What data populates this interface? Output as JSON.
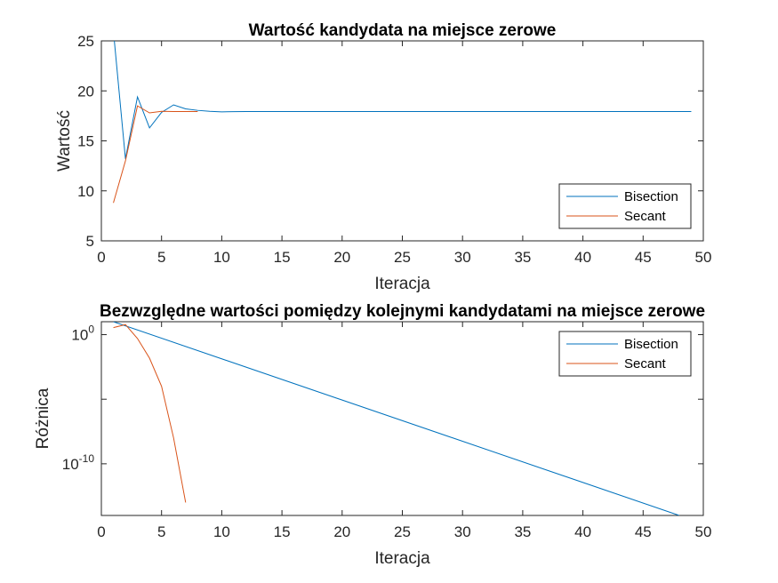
{
  "chart_data": [
    {
      "type": "line",
      "title": "Wartość kandydata na miejsce zerowe",
      "xlabel": "Iteracja",
      "ylabel": "Wartość",
      "xlim": [
        0,
        50
      ],
      "ylim": [
        5,
        25
      ],
      "yscale": "linear",
      "xticks": [
        0,
        5,
        10,
        15,
        20,
        25,
        30,
        35,
        40,
        45,
        50
      ],
      "yticks": [
        5,
        10,
        15,
        20,
        25
      ],
      "grid": false,
      "legend_position": "bottom-right",
      "series": [
        {
          "name": "Bisection",
          "color": "#0072BD",
          "x": [
            1,
            2,
            3,
            4,
            5,
            6,
            7,
            8,
            9,
            10,
            11,
            12,
            13,
            14,
            15,
            16,
            17,
            18,
            19,
            20,
            21,
            22,
            23,
            24,
            25,
            26,
            27,
            28,
            29,
            30,
            31,
            32,
            33,
            34,
            35,
            36,
            37,
            38,
            39,
            40,
            41,
            42,
            43,
            44,
            45,
            46,
            47,
            48,
            49
          ],
          "y": [
            26.0,
            13.2,
            19.4,
            16.3,
            17.85,
            18.6,
            18.2,
            18.05,
            17.95,
            17.9,
            17.92,
            17.93,
            17.93,
            17.93,
            17.93,
            17.93,
            17.93,
            17.93,
            17.93,
            17.93,
            17.93,
            17.93,
            17.93,
            17.93,
            17.93,
            17.93,
            17.93,
            17.93,
            17.93,
            17.93,
            17.93,
            17.93,
            17.93,
            17.93,
            17.93,
            17.93,
            17.93,
            17.93,
            17.93,
            17.93,
            17.93,
            17.93,
            17.93,
            17.93,
            17.93,
            17.93,
            17.93,
            17.93,
            17.93
          ]
        },
        {
          "name": "Secant",
          "color": "#D95319",
          "x": [
            1,
            2,
            3,
            4,
            5,
            6,
            7,
            8
          ],
          "y": [
            8.8,
            13.0,
            18.5,
            17.8,
            17.95,
            17.93,
            17.93,
            17.93
          ]
        }
      ]
    },
    {
      "type": "line",
      "title": "Bezwzględne wartości pomiędzy kolejnymi kandydatami na miejsce zerowe",
      "xlabel": "Iteracja",
      "ylabel": "Różnica",
      "xlim": [
        0,
        50
      ],
      "ylim": [
        1e-14,
        10
      ],
      "yscale": "log",
      "xticks": [
        0,
        5,
        10,
        15,
        20,
        25,
        30,
        35,
        40,
        45,
        50
      ],
      "yticks": [
        1,
        1e-10
      ],
      "ytick_labels": [
        {
          "base": "10",
          "exp": "0"
        },
        {
          "base": "10",
          "exp": "-10"
        }
      ],
      "grid": false,
      "legend_position": "top-right",
      "series": [
        {
          "name": "Bisection",
          "color": "#0072BD",
          "x": [
            1,
            48
          ],
          "y": [
            10,
            1e-14
          ]
        },
        {
          "name": "Secant",
          "color": "#D95319",
          "x": [
            1,
            2,
            3,
            4,
            5,
            6,
            7
          ],
          "y": [
            3.5,
            6,
            0.5,
            0.015,
            0.0001,
            1e-08,
            1e-13
          ]
        }
      ]
    }
  ]
}
